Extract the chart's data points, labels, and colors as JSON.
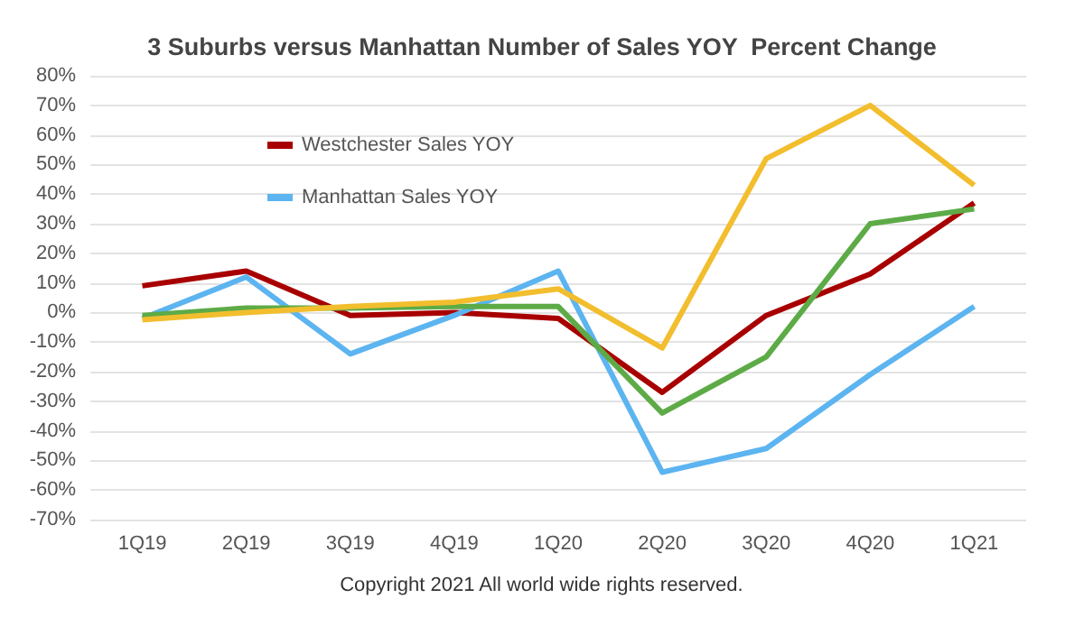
{
  "chart_data": {
    "type": "line",
    "title": "3 Suburbs versus Manhattan Number of Sales YOY  Percent Change",
    "categories": [
      "1Q19",
      "2Q19",
      "3Q19",
      "4Q19",
      "1Q20",
      "2Q20",
      "3Q20",
      "4Q20",
      "1Q21"
    ],
    "series": [
      {
        "name": "Westchester Sales YOY",
        "color": "#a80000",
        "values": [
          9,
          14,
          -1,
          0,
          -2,
          -27,
          -1,
          13,
          37
        ]
      },
      {
        "name": "Manhattan Sales YOY",
        "color": "#5cb4f0",
        "values": [
          -2,
          12,
          -14,
          -1,
          14,
          -54,
          -46,
          -21,
          2
        ]
      },
      {
        "color": "#5dab47",
        "values": [
          -1,
          1.5,
          1.5,
          2,
          2,
          -34,
          -15,
          30,
          35
        ]
      },
      {
        "color": "#f2be2e",
        "values": [
          -2.5,
          0,
          2,
          3.5,
          8,
          -12,
          52,
          70,
          43
        ]
      }
    ],
    "ylim": [
      -70,
      80
    ],
    "yticks": [
      {
        "value": -70,
        "label": "-70%"
      },
      {
        "value": -60,
        "label": "-60%"
      },
      {
        "value": -50,
        "label": "-50%"
      },
      {
        "value": -40,
        "label": "-40%"
      },
      {
        "value": -30,
        "label": "-30%"
      },
      {
        "value": -20,
        "label": "-20%"
      },
      {
        "value": -10,
        "label": "-10%"
      },
      {
        "value": 0,
        "label": "0%"
      },
      {
        "value": 10,
        "label": "10%"
      },
      {
        "value": 20,
        "label": "20%"
      },
      {
        "value": 30,
        "label": "30%"
      },
      {
        "value": 40,
        "label": "40%"
      },
      {
        "value": 50,
        "label": "50%"
      },
      {
        "value": 60,
        "label": "60%"
      },
      {
        "value": 70,
        "label": "70%"
      },
      {
        "value": 80,
        "label": "80%"
      }
    ],
    "grid": "y",
    "legend": "top left",
    "marker": "none",
    "line_style": "solid",
    "annotations": [
      "Copyright 2021 All world wide rights reserved."
    ]
  }
}
